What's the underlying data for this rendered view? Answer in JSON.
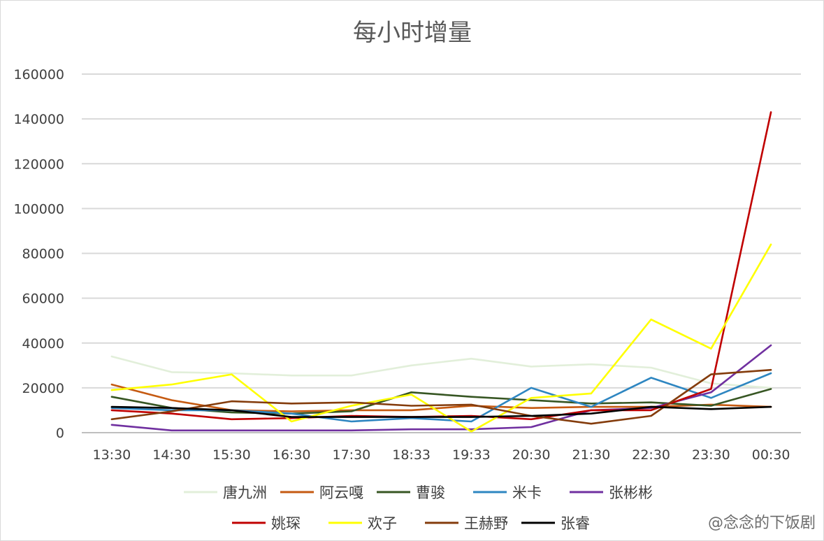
{
  "chart_data": {
    "type": "line",
    "title": "每小时增量",
    "xlabel": "",
    "ylabel": "",
    "ylim": [
      0,
      160000
    ],
    "yticks": [
      0,
      20000,
      40000,
      60000,
      80000,
      100000,
      120000,
      140000,
      160000
    ],
    "grid": true,
    "legend_position": "bottom",
    "categories": [
      "13:30",
      "14:30",
      "15:30",
      "16:30",
      "17:30",
      "18:33",
      "19:33",
      "20:30",
      "21:30",
      "22:30",
      "23:30",
      "00:30"
    ],
    "series": [
      {
        "name": "唐九洲",
        "color": "#e2efda",
        "values": [
          34000,
          27000,
          26500,
          25500,
          25500,
          30000,
          33000,
          29500,
          30500,
          29000,
          22000,
          20000
        ]
      },
      {
        "name": "阿云嘎",
        "color": "#c55a11",
        "values": [
          21500,
          14500,
          10000,
          9500,
          10000,
          10000,
          12000,
          11000,
          11500,
          11500,
          12500,
          11500
        ]
      },
      {
        "name": "曹骏",
        "color": "#375623",
        "values": [
          16000,
          11000,
          9000,
          8500,
          9500,
          18000,
          16000,
          14500,
          13000,
          13500,
          12000,
          19500
        ]
      },
      {
        "name": "米卡",
        "color": "#2e86c1",
        "values": [
          11000,
          10000,
          10000,
          8500,
          5000,
          6500,
          5000,
          20000,
          11500,
          24500,
          15500,
          26500
        ]
      },
      {
        "name": "张彬彬",
        "color": "#7030a0",
        "values": [
          3500,
          1000,
          1000,
          1000,
          1000,
          1500,
          1500,
          2500,
          10000,
          11000,
          18000,
          39000
        ]
      },
      {
        "name": "姚琛",
        "color": "#c00000",
        "values": [
          10000,
          8500,
          6000,
          6500,
          7500,
          7000,
          7500,
          6000,
          10000,
          10000,
          19500,
          143000
        ]
      },
      {
        "name": "欢子",
        "color": "#ffff00",
        "values": [
          19000,
          21500,
          26000,
          5000,
          12000,
          17000,
          500,
          15500,
          17500,
          50500,
          37500,
          84000
        ]
      },
      {
        "name": "王赫野",
        "color": "#843c0c",
        "values": [
          6000,
          9500,
          14000,
          13000,
          13500,
          12000,
          12500,
          7500,
          4000,
          7500,
          26000,
          28000
        ]
      },
      {
        "name": "张睿",
        "color": "#000000",
        "values": [
          11500,
          11000,
          10000,
          7000,
          7000,
          7000,
          7000,
          7500,
          8500,
          11500,
          10500,
          11500
        ]
      }
    ]
  },
  "watermark": "@念念的下饭剧"
}
